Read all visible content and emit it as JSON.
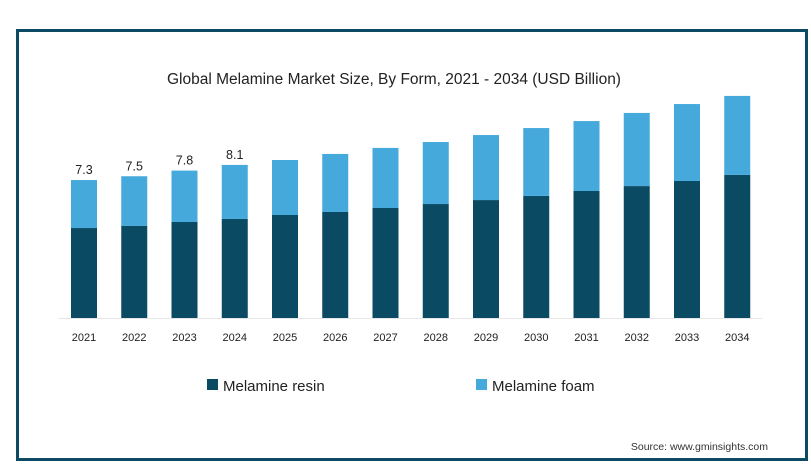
{
  "chart_data": {
    "type": "bar",
    "stacked": true,
    "title": "Global  Melamine Market Size, By Form, 2021 - 2034 (USD Billion)",
    "xlabel": "",
    "ylabel": "",
    "ylim": [
      0,
      12.5
    ],
    "grid": false,
    "legend_position": "bottom",
    "categories": [
      "2021",
      "2022",
      "2023",
      "2024",
      "2025",
      "2026",
      "2027",
      "2028",
      "2029",
      "2030",
      "2031",
      "2032",
      "2033",
      "2034"
    ],
    "series": [
      {
        "name": "Melamine resin",
        "color": "#0b4a63",
        "values": [
          4.76,
          4.87,
          5.08,
          5.24,
          5.45,
          5.61,
          5.82,
          6.03,
          6.24,
          6.46,
          6.72,
          6.98,
          7.25,
          7.57
        ]
      },
      {
        "name": "Melamine foam",
        "color": "#45a9dc",
        "values": [
          2.54,
          2.63,
          2.72,
          2.86,
          2.91,
          3.07,
          3.18,
          3.28,
          3.44,
          3.59,
          3.7,
          3.87,
          4.07,
          4.18
        ]
      }
    ],
    "data_labels": [
      "7.3",
      "7.5",
      "7.8",
      "8.1",
      null,
      null,
      null,
      null,
      null,
      null,
      null,
      null,
      null,
      null
    ],
    "source": "Source: www.gminsights.com"
  }
}
